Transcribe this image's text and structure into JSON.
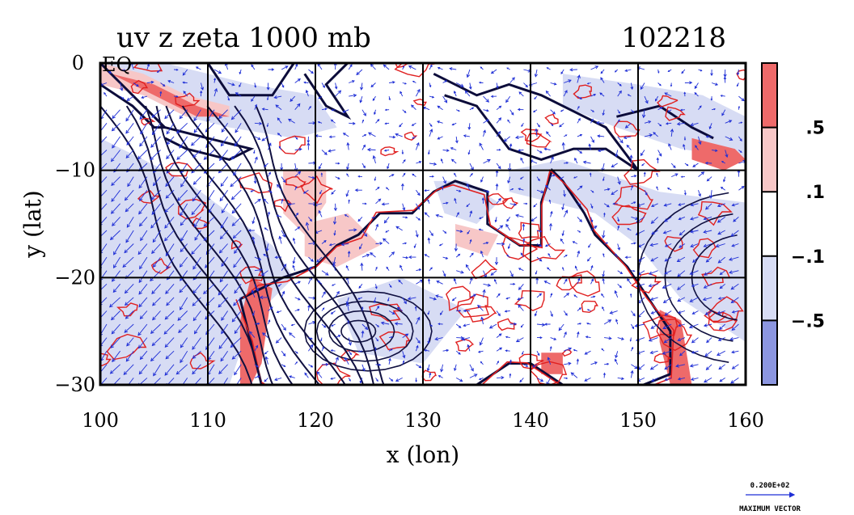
{
  "title": {
    "left": "uv z zeta 1000 mb",
    "right": "102218"
  },
  "chart_data": {
    "type": "heatmap",
    "title": "uv z zeta 1000 mb",
    "xlabel": "x (lon)",
    "ylabel": "y (lat)",
    "xlim": [
      100,
      160
    ],
    "ylim": [
      -30,
      0
    ],
    "x_ticks": [
      "100",
      "110",
      "120",
      "130",
      "140",
      "150",
      "160"
    ],
    "x_tick_values": [
      100,
      110,
      120,
      130,
      140,
      150,
      160
    ],
    "y_ticks": [
      "0",
      "−10",
      "−20",
      "−30"
    ],
    "y_tick_values": [
      0,
      -10,
      -20,
      -30
    ],
    "corner_label": "EQ",
    "grid": true,
    "grid_lines_x": [
      110,
      120,
      130,
      140,
      150
    ],
    "grid_lines_y": [
      -10,
      -20
    ],
    "colorbar": {
      "labels": [
        ".5",
        ".1",
        "−.1",
        "−.5"
      ],
      "label_values": [
        0.5,
        0.1,
        -0.1,
        -0.5
      ],
      "levels": [
        {
          "range": "> .5",
          "color": "#ee6a6a"
        },
        {
          "range": ".1 to .5",
          "color": "#f7c7c7"
        },
        {
          "range": "−.1 to .1",
          "color": "#ffffff"
        },
        {
          "range": "−.5 to −.1",
          "color": "#d7dcf4"
        },
        {
          "range": "< −.5",
          "color": "#8c96e0"
        }
      ]
    },
    "vector_key": {
      "value": "0.200E+02",
      "label": "MAXIMUM VECTOR",
      "color": "#1f2fd6"
    },
    "colors": {
      "vectors": "#1f2fd6",
      "positive_contours": "#e02020",
      "height_contours": "#101040"
    }
  }
}
